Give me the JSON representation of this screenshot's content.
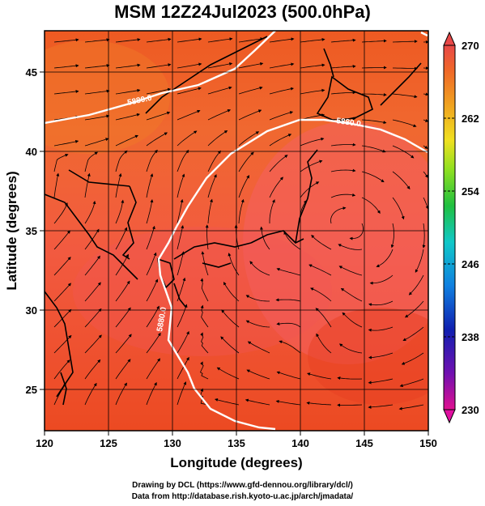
{
  "title": "MSM 12Z24Jul2023 (500.0hPa)",
  "map": {
    "lon_range": [
      120,
      150
    ],
    "lat_range": [
      22.4,
      47.6
    ],
    "x_axis_label": "Longitude (degrees)",
    "y_axis_label": "Latitude  (degrees)",
    "x_ticks": [
      "120",
      "125",
      "130",
      "135",
      "140",
      "145",
      "150"
    ],
    "y_ticks": [
      "25",
      "30",
      "35",
      "40",
      "45"
    ],
    "field": "temperature shading with wind streamlines",
    "contour_labels": [
      "5880.0",
      "5880.0",
      "5880.0"
    ],
    "contour_color": "#ffffff",
    "coastline_color": "#000000",
    "gridlines": true
  },
  "colorbar": {
    "labels": [
      "270",
      "262",
      "254",
      "246",
      "238",
      "230"
    ],
    "min": 230,
    "max": 270,
    "colors": [
      "#e01060",
      "#1010b0",
      "#1070e0",
      "#10c0e0",
      "#20d060",
      "#90e020",
      "#f0e020",
      "#f0a020",
      "#f06020",
      "#e03030"
    ]
  },
  "credits": {
    "line1": "Drawing by DCL (https://www.gfd-dennou.org/library/dcl/)",
    "line2": "Data from http://database.rish.kyoto-u.ac.jp/arch/jmadata/"
  }
}
